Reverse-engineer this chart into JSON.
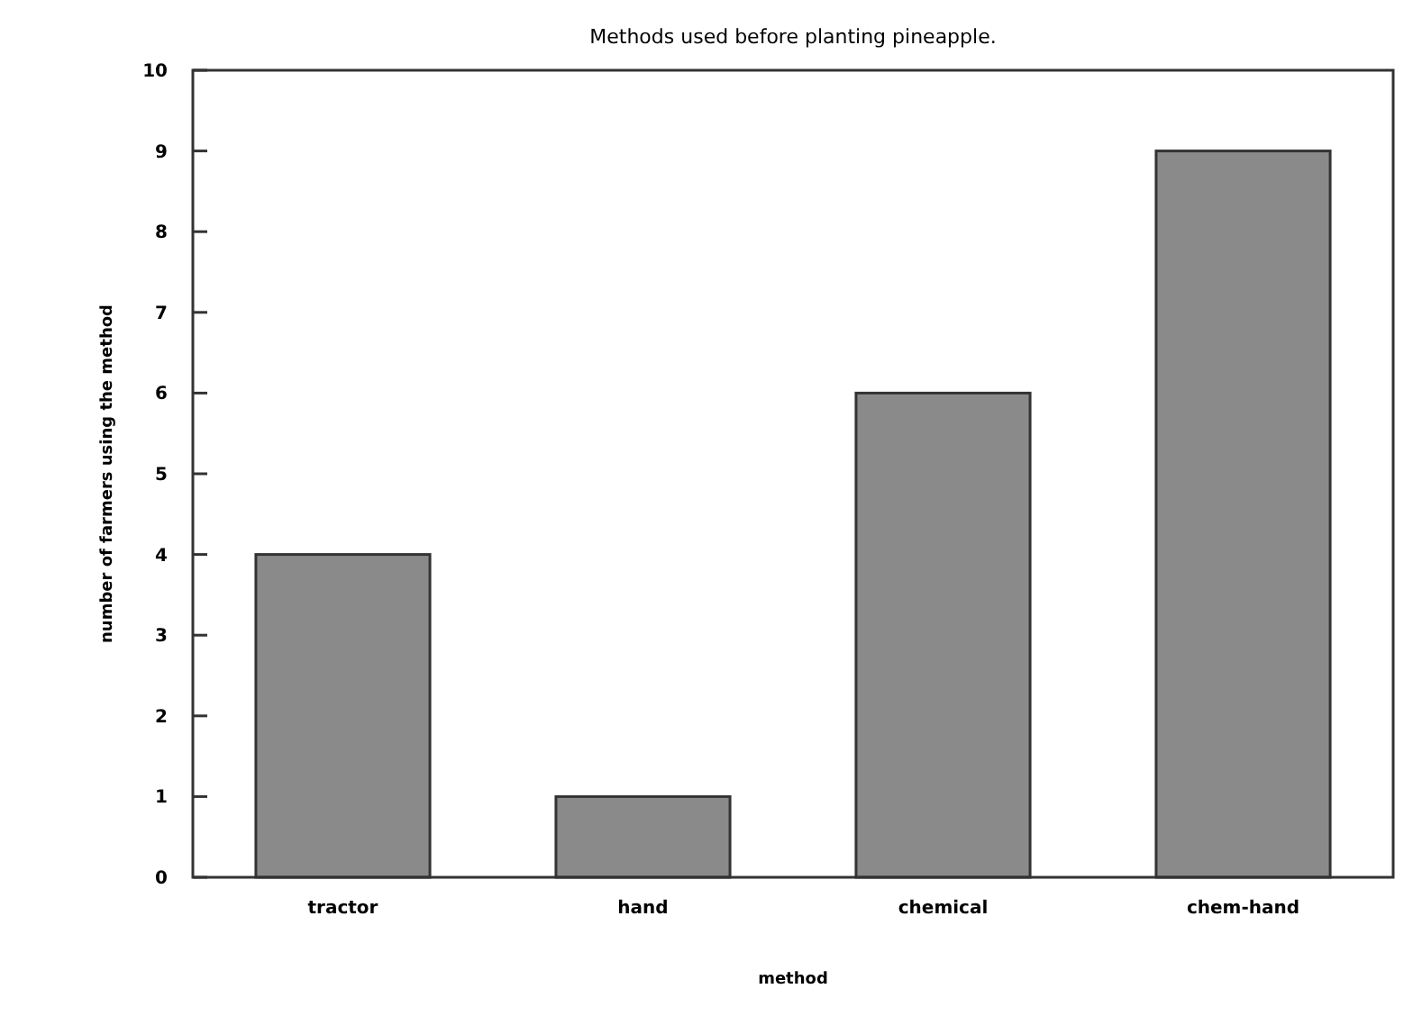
{
  "chart_data": {
    "type": "bar",
    "title": "Methods used before planting pineapple.",
    "xlabel": "method",
    "ylabel": "number of farmers using the method",
    "categories": [
      "tractor",
      "hand",
      "chemical",
      "chem-hand"
    ],
    "values": [
      4,
      1,
      6,
      9
    ],
    "color": "#8a8a8a",
    "ylim": [
      0,
      10
    ],
    "yticks": [
      0,
      1,
      2,
      3,
      4,
      5,
      6,
      7,
      8,
      9,
      10
    ],
    "grid": false
  }
}
